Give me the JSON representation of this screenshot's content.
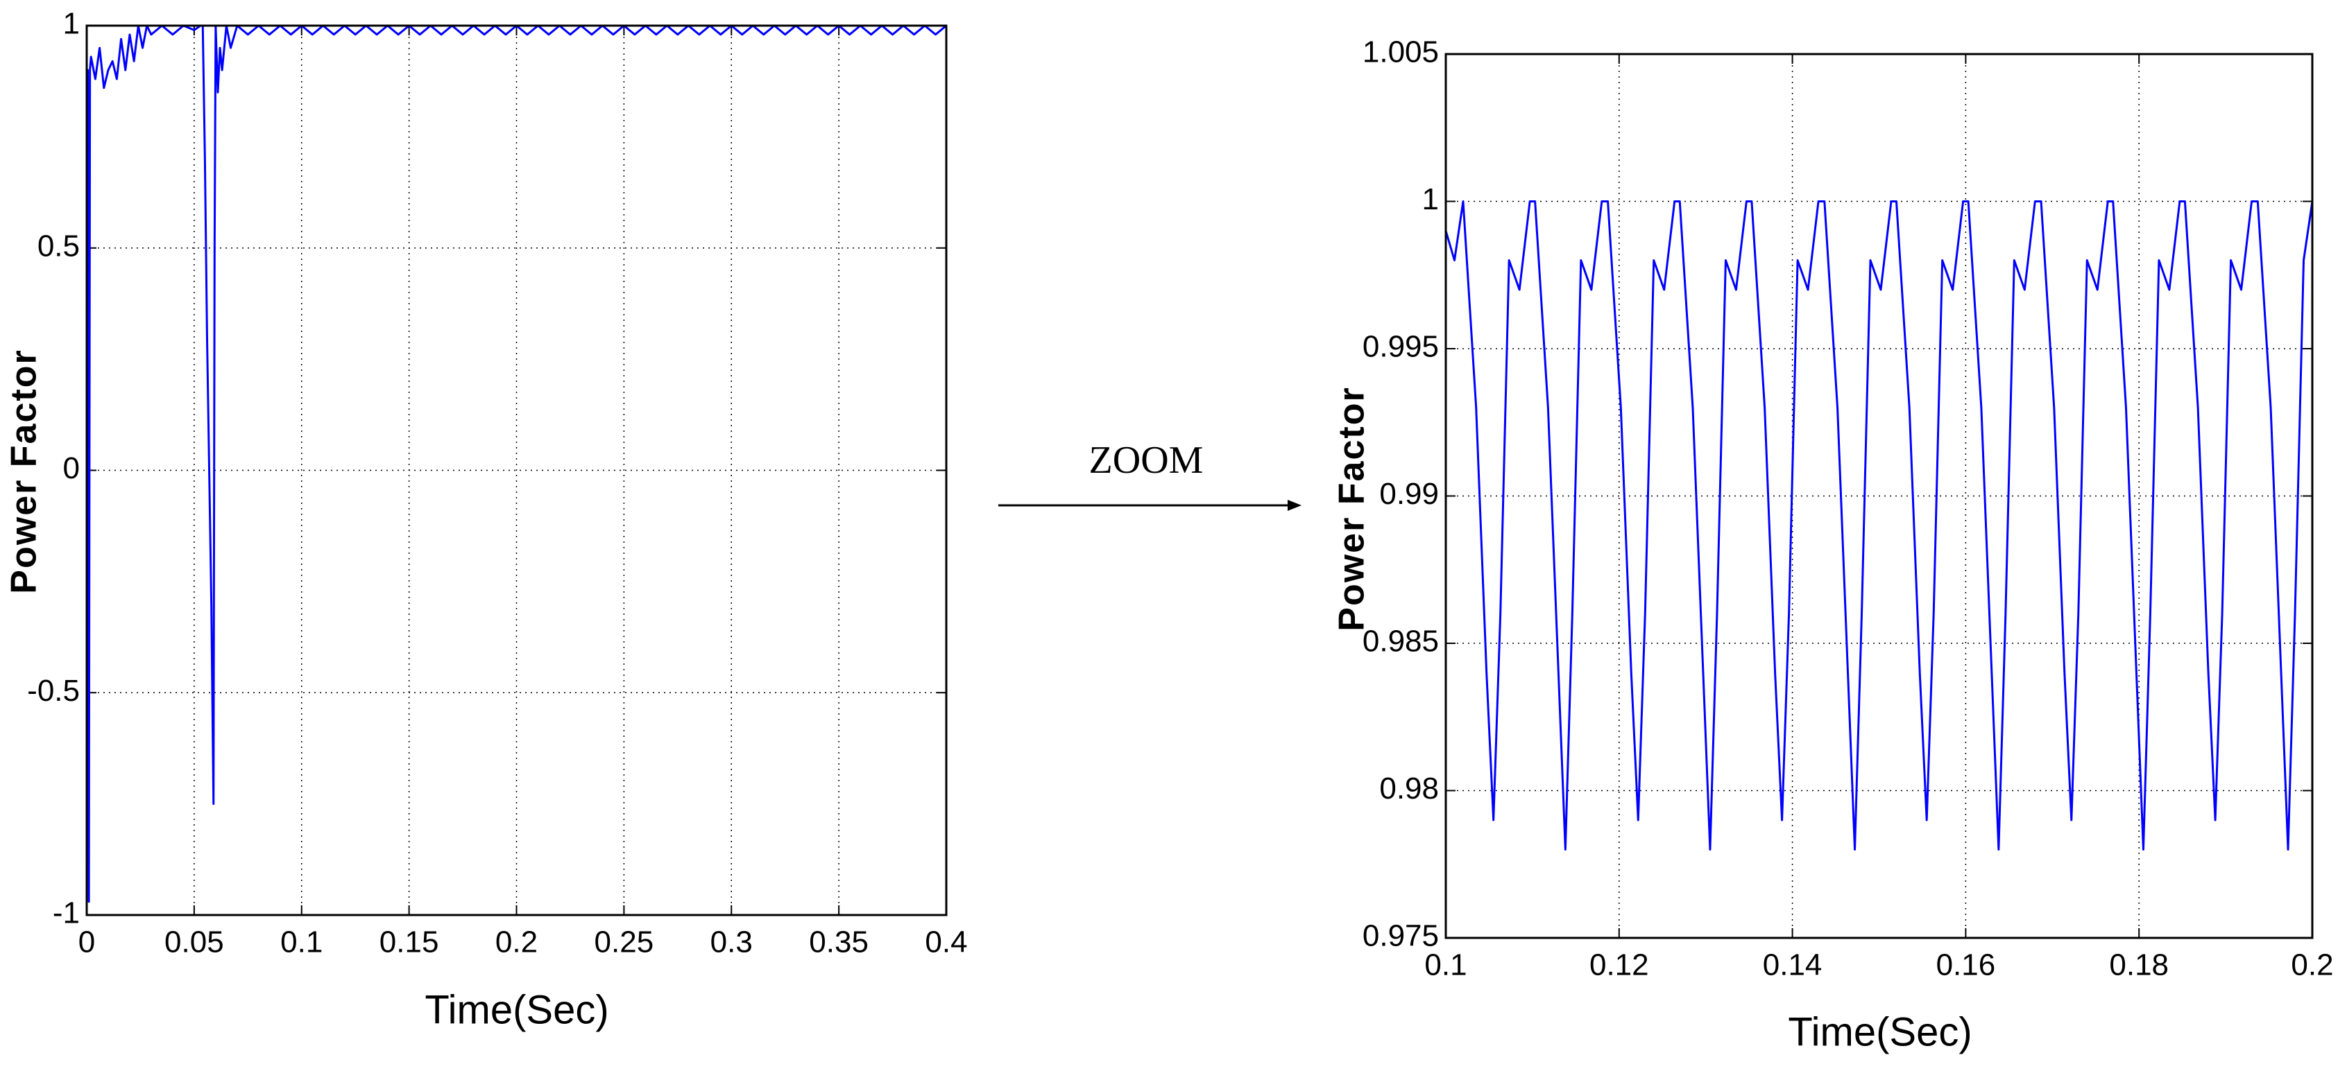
{
  "annotation": "ZOOM",
  "chart_data": [
    {
      "type": "line",
      "xlabel": "Time(Sec)",
      "ylabel": "Power Factor",
      "xlim": [
        0,
        0.4
      ],
      "ylim": [
        -1,
        1
      ],
      "xticks": [
        0,
        0.05,
        0.1,
        0.15,
        0.2,
        0.25,
        0.3,
        0.35,
        0.4
      ],
      "yticks": [
        -1,
        -0.5,
        0,
        0.5,
        1
      ],
      "grid": true,
      "x": [
        0,
        0.0005,
        0.001,
        0.0015,
        0.002,
        0.004,
        0.006,
        0.008,
        0.01,
        0.012,
        0.014,
        0.016,
        0.018,
        0.02,
        0.022,
        0.024,
        0.026,
        0.028,
        0.03,
        0.035,
        0.04,
        0.045,
        0.05,
        0.053,
        0.054,
        0.055,
        0.056,
        0.057,
        0.058,
        0.059,
        0.0595,
        0.06,
        0.061,
        0.062,
        0.063,
        0.065,
        0.067,
        0.07,
        0.075,
        0.08,
        0.085,
        0.09,
        0.095,
        0.1,
        0.105,
        0.11,
        0.115,
        0.12,
        0.125,
        0.13,
        0.135,
        0.14,
        0.145,
        0.15,
        0.155,
        0.16,
        0.165,
        0.17,
        0.175,
        0.18,
        0.185,
        0.19,
        0.195,
        0.2,
        0.205,
        0.21,
        0.215,
        0.22,
        0.225,
        0.23,
        0.235,
        0.24,
        0.245,
        0.25,
        0.255,
        0.26,
        0.265,
        0.27,
        0.275,
        0.28,
        0.285,
        0.29,
        0.295,
        0.3,
        0.305,
        0.31,
        0.315,
        0.32,
        0.325,
        0.33,
        0.335,
        0.34,
        0.345,
        0.35,
        0.355,
        0.36,
        0.365,
        0.37,
        0.375,
        0.38,
        0.385,
        0.39,
        0.395,
        0.4
      ],
      "series": [
        {
          "color": "#0000ff",
          "values": [
            0.9,
            0.9,
            -0.97,
            0.9,
            0.93,
            0.88,
            0.95,
            0.86,
            0.9,
            0.92,
            0.88,
            0.97,
            0.9,
            0.98,
            0.92,
            1,
            0.95,
            1,
            0.98,
            1,
            0.98,
            1,
            0.99,
            1,
            1,
            0.7,
            0.3,
            0,
            -0.3,
            -0.75,
            0.5,
            1,
            0.85,
            0.95,
            0.9,
            1,
            0.95,
            1,
            0.98,
            1,
            0.98,
            1,
            0.98,
            1,
            0.98,
            1,
            0.98,
            1,
            0.98,
            1,
            0.98,
            1,
            0.98,
            1,
            0.98,
            1,
            0.98,
            1,
            0.98,
            1,
            0.98,
            1,
            0.98,
            1,
            0.98,
            1,
            0.98,
            1,
            0.98,
            1,
            0.98,
            1,
            0.98,
            1,
            0.98,
            1,
            0.98,
            1,
            0.98,
            1,
            0.98,
            1,
            0.98,
            1,
            0.98,
            1,
            0.98,
            1,
            0.98,
            1,
            0.98,
            1,
            0.98,
            1,
            0.98,
            1,
            0.98,
            1,
            0.98,
            1,
            0.98,
            1,
            0.98,
            1
          ]
        }
      ]
    },
    {
      "type": "line",
      "xlabel": "Time(Sec)",
      "ylabel": "Power Factor",
      "xlim": [
        0.1,
        0.2
      ],
      "ylim": [
        0.975,
        1.005
      ],
      "xticks": [
        0.1,
        0.12,
        0.14,
        0.16,
        0.18,
        0.2
      ],
      "yticks": [
        0.975,
        0.98,
        0.985,
        0.99,
        0.995,
        1,
        1.005
      ],
      "grid": true,
      "x": [
        0.1,
        0.101,
        0.102,
        0.1035,
        0.1047,
        0.1055,
        0.1063,
        0.1073,
        0.1085,
        0.1097,
        0.1103,
        0.1118,
        0.113,
        0.1138,
        0.1146,
        0.1156,
        0.1168,
        0.118,
        0.1187,
        0.1202,
        0.1214,
        0.1222,
        0.123,
        0.124,
        0.1252,
        0.1264,
        0.127,
        0.1285,
        0.1297,
        0.1305,
        0.1313,
        0.1323,
        0.1335,
        0.1347,
        0.1353,
        0.1368,
        0.138,
        0.1388,
        0.1396,
        0.1406,
        0.1418,
        0.143,
        0.1437,
        0.1452,
        0.1464,
        0.1472,
        0.148,
        0.149,
        0.1502,
        0.1514,
        0.152,
        0.1535,
        0.1547,
        0.1555,
        0.1563,
        0.1573,
        0.1585,
        0.1597,
        0.1603,
        0.1618,
        0.163,
        0.1638,
        0.1646,
        0.1656,
        0.1668,
        0.168,
        0.1687,
        0.1702,
        0.1714,
        0.1722,
        0.173,
        0.174,
        0.1752,
        0.1764,
        0.177,
        0.1785,
        0.1797,
        0.1805,
        0.1813,
        0.1823,
        0.1835,
        0.1847,
        0.1853,
        0.1868,
        0.188,
        0.1888,
        0.1896,
        0.1906,
        0.1918,
        0.193,
        0.1937,
        0.1952,
        0.1964,
        0.1972,
        0.198,
        0.199,
        0.2
      ],
      "series": [
        {
          "color": "#0000ff",
          "values": [
            0.999,
            0.998,
            1,
            0.993,
            0.984,
            0.979,
            0.986,
            0.998,
            0.997,
            1,
            1,
            0.993,
            0.984,
            0.978,
            0.986,
            0.998,
            0.997,
            1,
            1,
            0.993,
            0.984,
            0.979,
            0.986,
            0.998,
            0.997,
            1,
            1,
            0.993,
            0.984,
            0.978,
            0.986,
            0.998,
            0.997,
            1,
            1,
            0.993,
            0.984,
            0.979,
            0.986,
            0.998,
            0.997,
            1,
            1,
            0.993,
            0.984,
            0.978,
            0.986,
            0.998,
            0.997,
            1,
            1,
            0.993,
            0.984,
            0.979,
            0.986,
            0.998,
            0.997,
            1,
            1,
            0.993,
            0.984,
            0.978,
            0.986,
            0.998,
            0.997,
            1,
            1,
            0.993,
            0.984,
            0.979,
            0.986,
            0.998,
            0.997,
            1,
            1,
            0.993,
            0.984,
            0.978,
            0.986,
            0.998,
            0.997,
            1,
            1,
            0.993,
            0.984,
            0.979,
            0.986,
            0.998,
            0.997,
            1,
            1,
            0.993,
            0.984,
            0.978,
            0.986,
            0.998,
            1
          ]
        }
      ]
    }
  ]
}
